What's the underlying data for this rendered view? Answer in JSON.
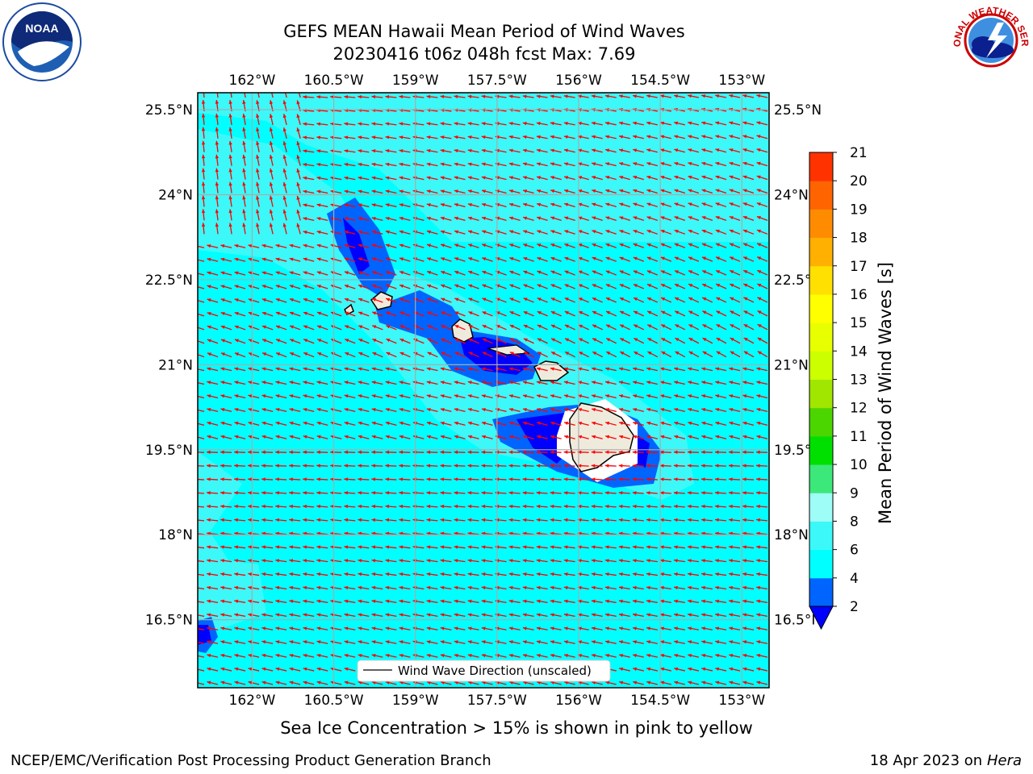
{
  "title": {
    "line1": "GEFS MEAN Hawaii Mean Period of Wind Waves",
    "line2": "20230416 t06z 048h fcst   Max: 7.69"
  },
  "axes": {
    "lon_labels": [
      "162°W",
      "160.5°W",
      "159°W",
      "157.5°W",
      "156°W",
      "154.5°W",
      "153°W"
    ],
    "lat_labels": [
      "25.5°N",
      "24°N",
      "22.5°N",
      "21°N",
      "19.5°N",
      "18°N",
      "16.5°N"
    ],
    "lon_values": [
      -162,
      -160.5,
      -159,
      -157.5,
      -156,
      -154.5,
      -153
    ],
    "lat_values": [
      25.5,
      24,
      22.5,
      21,
      19.5,
      18,
      16.5
    ]
  },
  "legend": {
    "label": "Wind Wave Direction (unscaled)"
  },
  "colorbar": {
    "label": "Mean Period of Wind Waves [s]",
    "ticks": [
      "2",
      "4",
      "6",
      "8",
      "9",
      "10",
      "11",
      "12",
      "13",
      "14",
      "15",
      "16",
      "17",
      "18",
      "19",
      "20",
      "21"
    ],
    "colors": [
      "#0064ff",
      "#00ffff",
      "#3cf8f8",
      "#9ffdf7",
      "#3ce87a",
      "#00e000",
      "#4cd600",
      "#a0e600",
      "#ccff00",
      "#e8ff00",
      "#ffff00",
      "#ffe000",
      "#ffb000",
      "#ff8c00",
      "#ff6400",
      "#ff3200",
      "#ff0000"
    ],
    "under_color": "#0000ff"
  },
  "chart_data": {
    "type": "heatmap",
    "variable": "Mean Period of Wind Waves [s]",
    "max": 7.69,
    "lon_range": [
      -163,
      -152.5
    ],
    "lat_range": [
      15.3,
      25.8
    ],
    "arrow_color": "#ff0000"
  },
  "footer": {
    "caption": "Sea Ice Concentration > 15% is shown in pink to yellow",
    "credit": "NCEP/EMC/Verification Post Processing Product Generation Branch",
    "date": "18 Apr 2023 on",
    "system": "Hera"
  },
  "logos": {
    "noaa": "NOAA",
    "nws": "NATIONAL WEATHER SERVICE"
  }
}
